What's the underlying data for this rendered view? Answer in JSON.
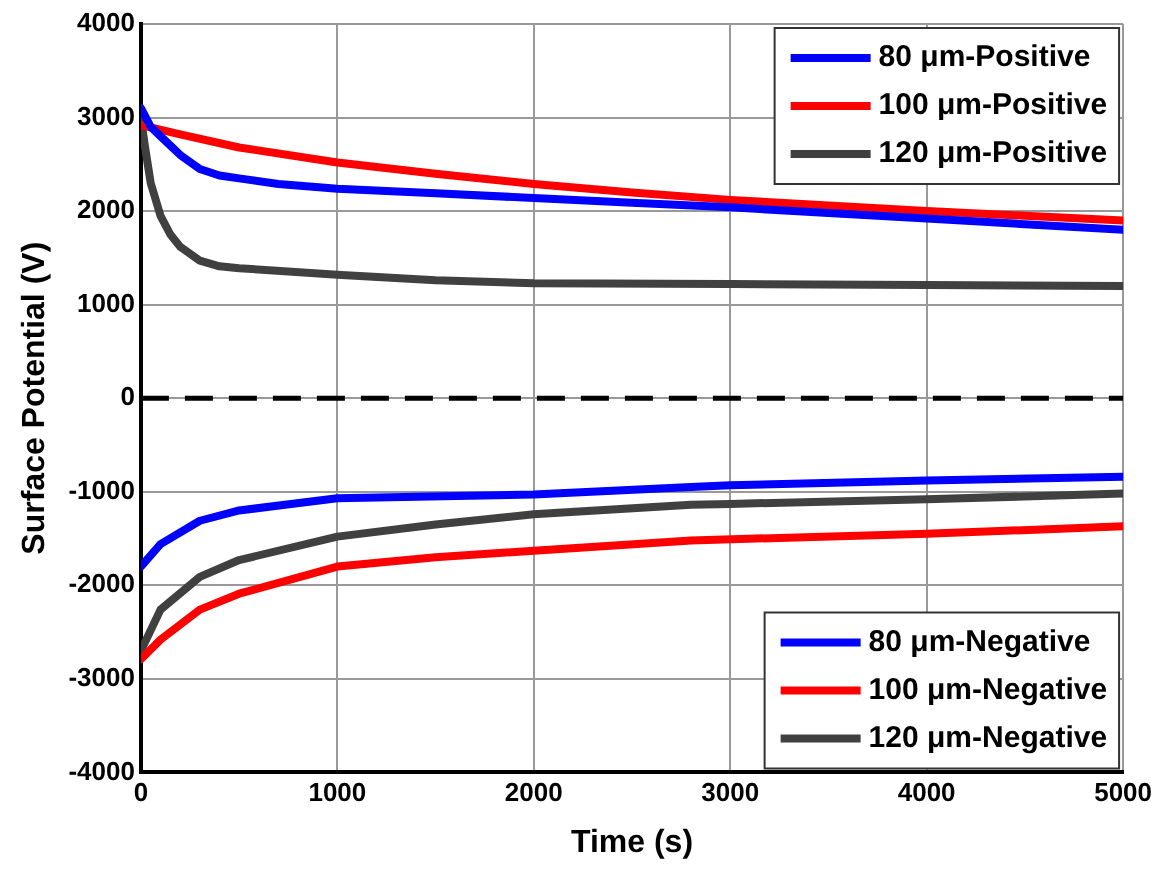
{
  "chart_data": {
    "type": "line",
    "xlabel": "Time (s)",
    "ylabel": "Surface Potential (V)",
    "xlim": [
      0,
      5000
    ],
    "xticks": [
      0,
      1000,
      2000,
      3000,
      4000,
      5000
    ],
    "ylim": [
      -4000,
      4000
    ],
    "yticks": [
      -4000,
      -3000,
      -2000,
      -1000,
      0,
      1000,
      2000,
      3000,
      4000
    ],
    "grid": true,
    "legend": "right",
    "marker": "none",
    "line_style": "solid",
    "ref_lines": [
      {
        "axis": "y",
        "value": 0,
        "color": "#000000",
        "line_style": "dashed"
      }
    ],
    "series": [
      {
        "name": "80 μm-Positive",
        "color": "#0000ff",
        "x": [
          0,
          50,
          100,
          200,
          300,
          400,
          500,
          700,
          1000,
          1500,
          2000,
          2500,
          3000,
          3500,
          4000,
          4500,
          5000
        ],
        "values": [
          3100,
          2900,
          2800,
          2600,
          2450,
          2380,
          2350,
          2290,
          2240,
          2190,
          2140,
          2090,
          2040,
          1980,
          1920,
          1860,
          1800
        ]
      },
      {
        "name": "100 μm-Positive",
        "color": "#ff0000",
        "x": [
          0,
          200,
          500,
          1000,
          1500,
          2000,
          2500,
          3000,
          3500,
          4000,
          4500,
          5000
        ],
        "values": [
          2920,
          2820,
          2680,
          2520,
          2400,
          2290,
          2200,
          2120,
          2060,
          2000,
          1950,
          1900
        ]
      },
      {
        "name": "120 μm-Positive",
        "color": "#404040",
        "x": [
          0,
          20,
          50,
          100,
          150,
          200,
          300,
          400,
          500,
          1000,
          1500,
          2000,
          3000,
          4000,
          5000
        ],
        "values": [
          3000,
          2700,
          2300,
          1950,
          1750,
          1620,
          1470,
          1410,
          1390,
          1320,
          1260,
          1230,
          1220,
          1210,
          1200
        ]
      },
      {
        "name": "80 μm-Negative",
        "color": "#0000ff",
        "x": [
          0,
          100,
          300,
          500,
          1000,
          2000,
          2800,
          3000,
          4000,
          5000
        ],
        "values": [
          -1800,
          -1560,
          -1310,
          -1200,
          -1070,
          -1030,
          -950,
          -930,
          -880,
          -840
        ]
      },
      {
        "name": "100 μm-Negative",
        "color": "#ff0000",
        "x": [
          0,
          100,
          300,
          500,
          1000,
          1500,
          2000,
          2800,
          4000,
          5000
        ],
        "values": [
          -2790,
          -2580,
          -2260,
          -2090,
          -1800,
          -1700,
          -1630,
          -1520,
          -1450,
          -1370
        ]
      },
      {
        "name": "120 μm-Negative",
        "color": "#404040",
        "x": [
          0,
          100,
          300,
          500,
          1000,
          1500,
          2000,
          2800,
          3000,
          4000,
          5000
        ],
        "values": [
          -2700,
          -2260,
          -1910,
          -1730,
          -1480,
          -1350,
          -1240,
          -1140,
          -1130,
          -1080,
          -1020
        ]
      }
    ]
  }
}
